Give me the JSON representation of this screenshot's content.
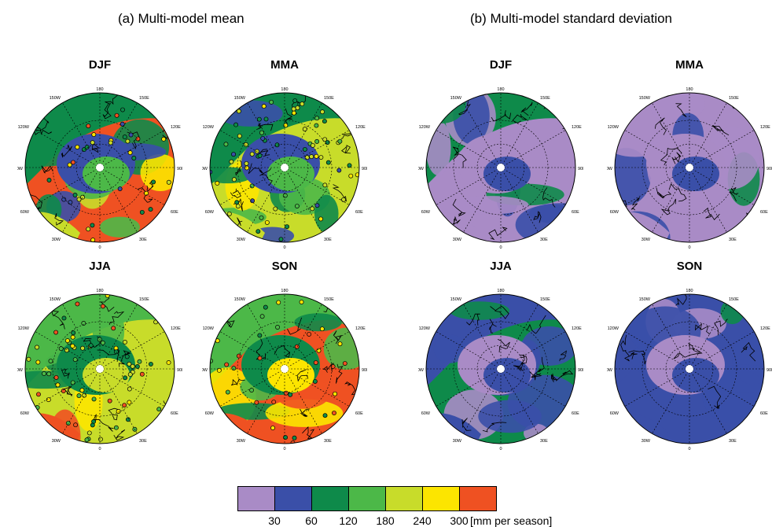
{
  "titles": {
    "a": "(a) Multi-model mean",
    "b": "(b) Multi-model standard deviation"
  },
  "chart_data": [
    {
      "type": "heatmap",
      "title": "(a) Multi-model mean",
      "panels": [
        "DJF",
        "MMA",
        "JJA",
        "SON"
      ],
      "note": "North polar stereographic precipitation maps with observation station circles"
    },
    {
      "type": "heatmap",
      "title": "(b) Multi-model standard deviation",
      "panels": [
        "DJF",
        "MMA",
        "JJA",
        "SON"
      ]
    }
  ],
  "map_labels": {
    "top": "180",
    "bottom": "0",
    "left": "90W",
    "right": "90E",
    "tl1": "150W",
    "tl2": "120W",
    "tr1": "150E",
    "tr2": "120E",
    "bl1": "60W",
    "bl2": "30W",
    "br1": "60E",
    "br2": "30E"
  },
  "colorbar": {
    "colors": [
      "#a98bc6",
      "#3a4fa8",
      "#0e8a4a",
      "#4cb848",
      "#c8dc2a",
      "#fce500",
      "#ef5122"
    ],
    "ticks": [
      "30",
      "60",
      "120",
      "180",
      "240",
      "300"
    ],
    "units": "[mm per season]"
  }
}
